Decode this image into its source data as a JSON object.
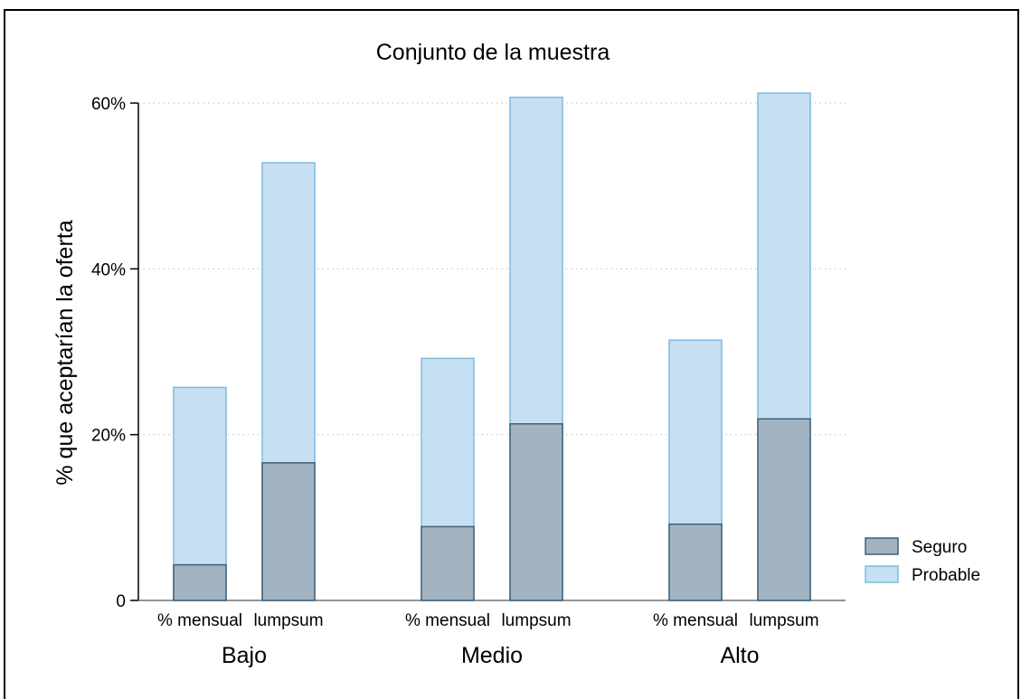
{
  "chart_data": {
    "type": "bar",
    "title": "Conjunto de la muestra",
    "ylabel": "% que aceptarían la oferta",
    "ylim": [
      0,
      60
    ],
    "yticks": [
      0,
      20,
      40,
      60
    ],
    "ytick_labels": [
      "0",
      "20%",
      "40%",
      "60%"
    ],
    "grid": true,
    "legend_position": "right",
    "groups": [
      "Bajo",
      "Medio",
      "Alto"
    ],
    "categories": [
      "% mensual",
      "lumpsum"
    ],
    "series": [
      {
        "name": "Seguro",
        "color": "#a2b4c1",
        "stroke": "#3f5e78",
        "values": [
          [
            4.3,
            16.6
          ],
          [
            8.9,
            21.3
          ],
          [
            9.2,
            21.9
          ]
        ]
      },
      {
        "name": "Probable",
        "color": "#c5e0f3",
        "stroke": "#7fb9de",
        "values": [
          [
            25.7,
            52.8
          ],
          [
            29.2,
            60.7
          ],
          [
            31.4,
            61.2
          ]
        ]
      }
    ]
  }
}
